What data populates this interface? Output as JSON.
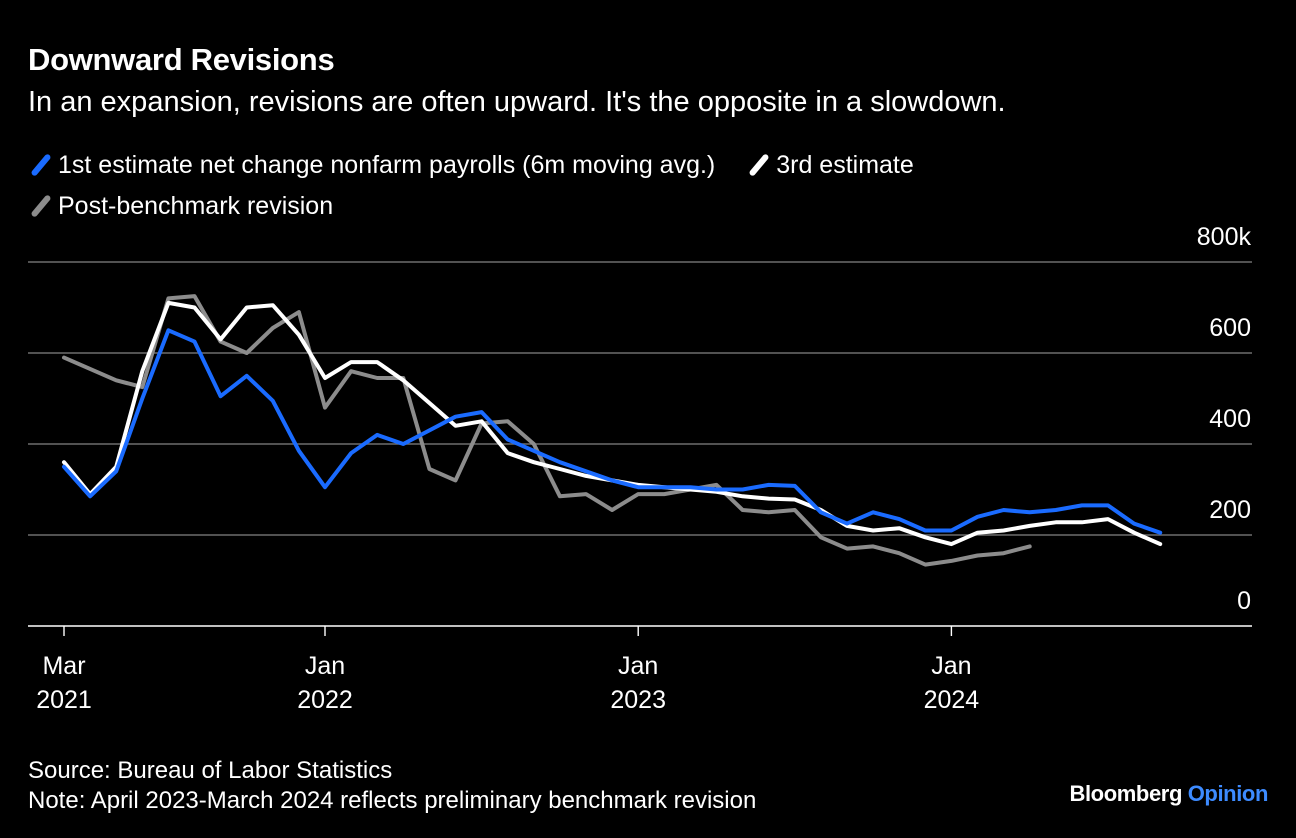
{
  "header": {
    "title": "Downward Revisions",
    "subtitle": "In an expansion, revisions are often upward. It's the opposite in a slowdown."
  },
  "legend": [
    {
      "label": "1st estimate net change nonfarm payrolls (6m moving avg.)",
      "color": "#1a6bff"
    },
    {
      "label": "3rd estimate",
      "color": "#ffffff"
    },
    {
      "label": "Post-benchmark revision",
      "color": "#8c8c8c"
    }
  ],
  "footer": {
    "source": "Source: Bureau of Labor Statistics",
    "note": "Note: April 2023-March 2024 reflects preliminary benchmark revision"
  },
  "brand": {
    "name": "Bloomberg",
    "accent": "Opinion"
  },
  "chart_data": {
    "type": "line",
    "title": "Downward Revisions",
    "ylim": [
      0,
      800
    ],
    "yticks": [
      {
        "value": 0,
        "label": "0"
      },
      {
        "value": 200,
        "label": "200"
      },
      {
        "value": 400,
        "label": "400"
      },
      {
        "value": 600,
        "label": "600"
      },
      {
        "value": 800,
        "label": "800k"
      }
    ],
    "xticks": [
      {
        "month": "2021-03",
        "label1": "Mar",
        "label2": "2021"
      },
      {
        "month": "2022-01",
        "label1": "Jan",
        "label2": "2022"
      },
      {
        "month": "2023-01",
        "label1": "Jan",
        "label2": "2023"
      },
      {
        "month": "2024-01",
        "label1": "Jan",
        "label2": "2024"
      }
    ],
    "x_start": "2021-03",
    "x_end": "2024-10",
    "grid": true,
    "legend_position": "top",
    "series": [
      {
        "name": "1st estimate net change nonfarm payrolls (6m moving avg.)",
        "color": "#1a6bff",
        "start": "2021-03",
        "values": [
          350,
          285,
          340,
          500,
          650,
          625,
          505,
          550,
          495,
          385,
          305,
          380,
          420,
          400,
          430,
          460,
          470,
          410,
          385,
          360,
          340,
          320,
          305,
          305,
          305,
          300,
          300,
          310,
          308,
          250,
          225,
          250,
          235,
          210,
          210,
          240,
          255,
          250,
          255,
          265,
          265,
          225,
          205
        ]
      },
      {
        "name": "3rd estimate",
        "color": "#ffffff",
        "start": "2021-03",
        "values": [
          360,
          290,
          350,
          560,
          710,
          700,
          630,
          700,
          705,
          640,
          545,
          580,
          580,
          540,
          490,
          440,
          450,
          380,
          360,
          345,
          330,
          320,
          310,
          305,
          300,
          295,
          285,
          280,
          278,
          255,
          220,
          210,
          215,
          195,
          180,
          205,
          210,
          220,
          228,
          228,
          235,
          205,
          180
        ]
      },
      {
        "name": "Post-benchmark revision",
        "color": "#8c8c8c",
        "start": "2021-03",
        "values": [
          590,
          565,
          540,
          525,
          720,
          725,
          625,
          600,
          655,
          690,
          480,
          560,
          545,
          545,
          345,
          320,
          445,
          450,
          400,
          285,
          290,
          255,
          290,
          290,
          300,
          310,
          255,
          250,
          255,
          195,
          170,
          175,
          160,
          135,
          143,
          155,
          160,
          175
        ]
      }
    ]
  }
}
